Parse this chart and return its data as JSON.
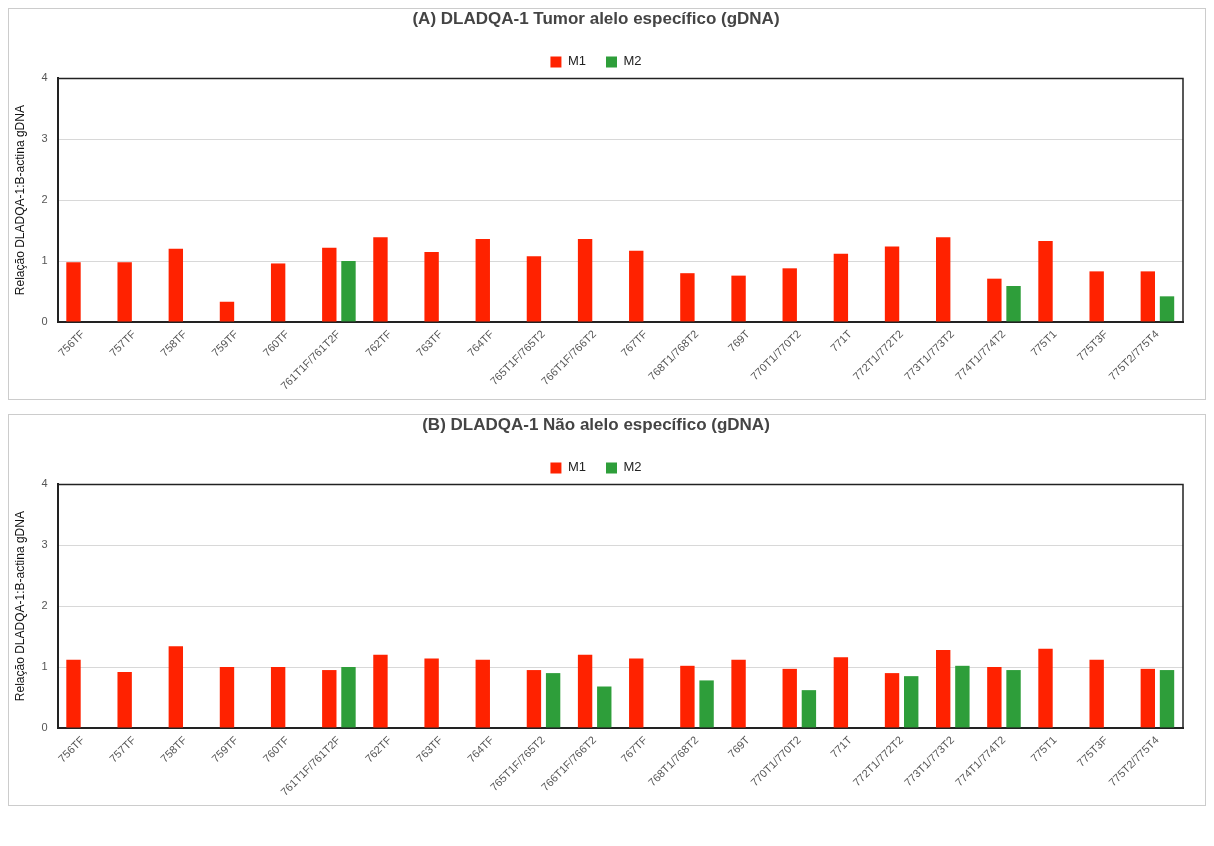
{
  "chart_data": [
    {
      "type": "bar",
      "title": "(A) DLADQA-1 Tumor alelo específico (gDNA)",
      "ylabel": "Relação DLADQA-1:B-actina gDNA",
      "categories": [
        "756TF",
        "757TF",
        "758TF",
        "759TF",
        "760TF",
        "761T1F/761T2F",
        "762TF",
        "763TF",
        "764TF",
        "765T1F/765T2",
        "766T1F/766T2",
        "767TF",
        "768T1/768T2",
        "769T",
        "770T1/770T2",
        "771T",
        "772T1/772T2",
        "773T1/773T2",
        "774T1/774T2",
        "775T1",
        "775T3F",
        "775T2/775T4"
      ],
      "series": [
        {
          "name": "M1",
          "color": "#ff2200",
          "values": [
            0.98,
            0.98,
            1.2,
            0.33,
            0.96,
            1.22,
            1.39,
            1.15,
            1.36,
            1.08,
            1.36,
            1.17,
            0.8,
            0.76,
            0.88,
            1.12,
            1.24,
            1.39,
            0.71,
            1.33,
            0.83,
            0.83
          ]
        },
        {
          "name": "M2",
          "color": "#2e9e3a",
          "values": [
            null,
            null,
            null,
            null,
            null,
            1.0,
            null,
            null,
            null,
            null,
            null,
            null,
            null,
            null,
            null,
            null,
            null,
            null,
            0.59,
            null,
            null,
            0.42
          ]
        }
      ],
      "ylim": [
        0,
        4
      ],
      "yticks": [
        0,
        1,
        2,
        3,
        4
      ],
      "grid": "y",
      "legend": "top"
    },
    {
      "type": "bar",
      "title": "(B) DLADQA-1 Não alelo específico (gDNA)",
      "ylabel": "Relação DLADQA-1:B-actina gDNA",
      "categories": [
        "756TF",
        "757TF",
        "758TF",
        "759TF",
        "760TF",
        "761T1F/761T2F",
        "762TF",
        "763TF",
        "764TF",
        "765T1F/765T2",
        "766T1F/766T2",
        "767TF",
        "768T1/768T2",
        "769T",
        "770T1/770T2",
        "771T",
        "772T1/772T2",
        "773T1/773T2",
        "774T1/774T2",
        "775T1",
        "775T3F",
        "775T2/775T4"
      ],
      "series": [
        {
          "name": "M1",
          "color": "#ff2200",
          "values": [
            1.12,
            0.92,
            1.34,
            1.0,
            1.0,
            0.95,
            1.2,
            1.14,
            1.12,
            0.95,
            1.2,
            1.14,
            1.02,
            1.12,
            0.97,
            1.16,
            0.9,
            1.28,
            1.0,
            1.3,
            1.12,
            0.97
          ]
        },
        {
          "name": "M2",
          "color": "#2e9e3a",
          "values": [
            null,
            null,
            null,
            null,
            null,
            1.0,
            null,
            null,
            null,
            0.9,
            0.68,
            null,
            0.78,
            null,
            0.62,
            null,
            0.85,
            1.02,
            0.95,
            null,
            null,
            0.95
          ]
        }
      ],
      "ylim": [
        0,
        4
      ],
      "yticks": [
        0,
        1,
        2,
        3,
        4
      ],
      "grid": "y",
      "legend": "top"
    }
  ]
}
